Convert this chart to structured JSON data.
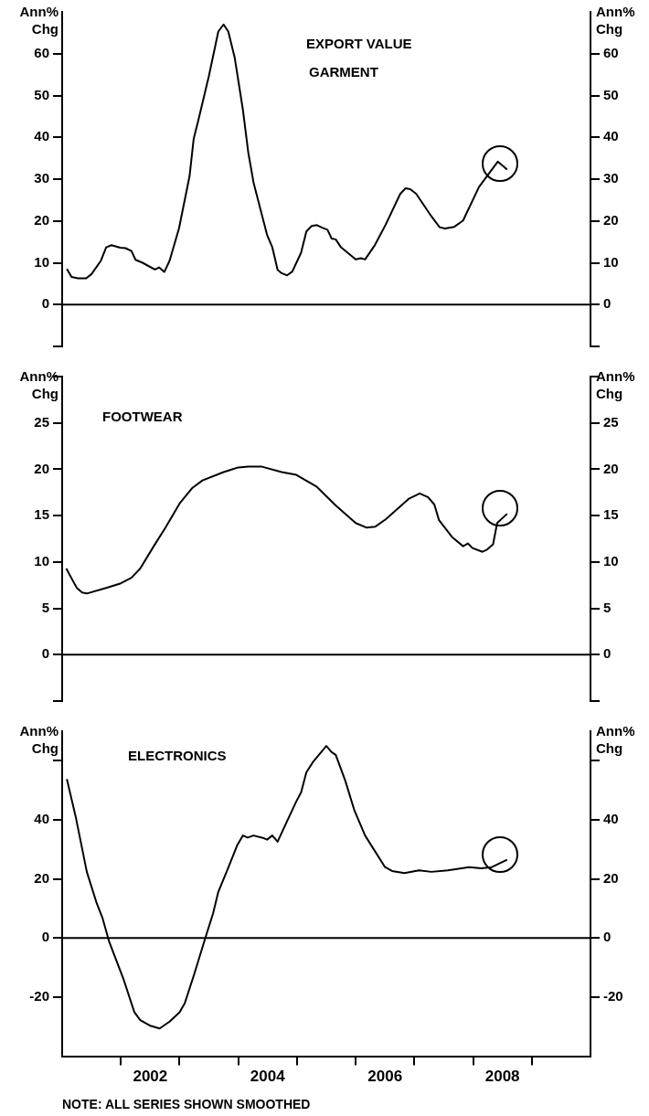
{
  "chart_data": [
    {
      "type": "line",
      "title": "EXPORT VALUE",
      "subtitle": "GARMENT",
      "ylabel": "Ann% Chg",
      "y2label": "Ann% Chg",
      "tick_labels": "y",
      "xlim": [
        2001,
        2010
      ],
      "ylim": [
        -10,
        70
      ],
      "yticks": [
        {
          "value": -10,
          "label": null
        },
        0,
        10,
        20,
        30,
        40,
        50,
        60
      ],
      "y2lim": [
        -10,
        70
      ],
      "y2ticks": [
        {
          "value": -10,
          "label": null
        },
        0,
        10,
        20,
        30,
        40,
        50,
        60
      ],
      "x": [
        2001.08,
        2001.16,
        2001.27,
        2001.41,
        2001.5,
        2001.66,
        2001.75,
        2001.84,
        2001.99,
        2002.08,
        2002.18,
        2002.25,
        2002.37,
        2002.58,
        2002.65,
        2002.74,
        2002.83,
        2002.99,
        2003.17,
        2003.24,
        2003.32,
        2003.5,
        2003.66,
        2003.75,
        2003.83,
        2003.94,
        2004.08,
        2004.17,
        2004.26,
        2004.49,
        2004.58,
        2004.67,
        2004.74,
        2004.83,
        2004.92,
        2005.07,
        2005.16,
        2005.25,
        2005.34,
        2005.43,
        2005.52,
        2005.59,
        2005.66,
        2005.75,
        2006.0,
        2006.09,
        2006.16,
        2006.33,
        2006.51,
        2006.76,
        2006.85,
        2006.93,
        2007.03,
        2007.29,
        2007.43,
        2007.52,
        2007.68,
        2007.83,
        2008.1,
        2008.42,
        2008.58
      ],
      "series": [
        {
          "color": "#000000",
          "values": [
            8.5,
            6.6,
            6.3,
            6.3,
            7.3,
            10.5,
            13.7,
            14.2,
            13.6,
            13.5,
            12.8,
            10.7,
            10.0,
            8.4,
            8.9,
            7.8,
            10.5,
            18.2,
            30.7,
            39.6,
            44.1,
            54.7,
            65.3,
            67.0,
            65.3,
            59.0,
            46.5,
            36.4,
            29.2,
            16.7,
            13.7,
            8.3,
            7.5,
            7.0,
            7.9,
            12.4,
            17.5,
            18.8,
            19.0,
            18.4,
            17.9,
            15.8,
            15.6,
            13.7,
            10.8,
            11.1,
            10.8,
            14.3,
            19.1,
            26.5,
            27.8,
            27.6,
            26.5,
            21.1,
            18.5,
            18.2,
            18.6,
            20.1,
            28.1,
            34.2,
            32.3
          ]
        }
      ],
      "ref_lines": [
        {
          "axis": "y",
          "value": 0
        }
      ]
    },
    {
      "type": "line",
      "title": "FOOTWEAR",
      "ylabel": "Ann% Chg",
      "y2label": "Ann% Chg",
      "tick_labels": "y",
      "xlim": [
        2001,
        2010
      ],
      "ylim": [
        -5,
        30
      ],
      "yticks": [
        {
          "value": -5,
          "label": null
        },
        0,
        5,
        10,
        15,
        20,
        25,
        {
          "value": 30,
          "label": null
        }
      ],
      "y2lim": [
        -5,
        30
      ],
      "y2ticks": [
        {
          "value": -5,
          "label": null
        },
        0,
        5,
        10,
        15,
        20,
        25,
        {
          "value": 30,
          "label": null
        }
      ],
      "x": [
        2001.07,
        2001.18,
        2001.25,
        2001.34,
        2001.42,
        2001.75,
        2002.0,
        2002.18,
        2002.33,
        2002.56,
        2002.76,
        2003.0,
        2003.22,
        2003.39,
        2003.75,
        2004.0,
        2004.17,
        2004.39,
        2004.74,
        2004.99,
        2005.34,
        2005.66,
        2006.0,
        2006.19,
        2006.33,
        2006.51,
        2006.9,
        2007.09,
        2007.23,
        2007.34,
        2007.42,
        2007.64,
        2007.83,
        2007.91,
        2007.99,
        2008.16,
        2008.23,
        2008.34,
        2008.41,
        2008.58
      ],
      "series": [
        {
          "color": "#000000",
          "values": [
            9.3,
            8.0,
            7.2,
            6.7,
            6.6,
            7.2,
            7.7,
            8.3,
            9.3,
            11.7,
            13.7,
            16.3,
            18.0,
            18.8,
            19.7,
            20.2,
            20.3,
            20.3,
            19.7,
            19.4,
            18.1,
            16.1,
            14.2,
            13.7,
            13.8,
            14.6,
            16.8,
            17.4,
            17.0,
            16.2,
            14.5,
            12.7,
            11.7,
            12.0,
            11.5,
            11.1,
            11.3,
            11.9,
            14.2,
            15.2
          ]
        }
      ],
      "ref_lines": [
        {
          "axis": "y",
          "value": 0
        }
      ]
    },
    {
      "type": "line",
      "title": "ELECTRONICS",
      "ylabel": "Ann% Chg",
      "y2label": "Ann% Chg",
      "annotations": [
        "NOTE: ALL SERIES SHOWN SMOOTHED"
      ],
      "xlim": [
        2001,
        2010
      ],
      "xticks": [
        {
          "value": 2002,
          "label": null
        },
        {
          "value": 2002.5,
          "label": "2002"
        },
        {
          "value": 2003,
          "label": null
        },
        {
          "value": 2004,
          "label": null
        },
        {
          "value": 2004.5,
          "label": "2004"
        },
        {
          "value": 2005,
          "label": null
        },
        {
          "value": 2006,
          "label": null
        },
        {
          "value": 2006.5,
          "label": "2006"
        },
        {
          "value": 2007,
          "label": null
        },
        {
          "value": 2008,
          "label": null
        },
        {
          "value": 2008.5,
          "label": "2008"
        },
        {
          "value": 2009,
          "label": null
        }
      ],
      "ylim": [
        -40,
        70
      ],
      "yticks": [
        -20,
        0,
        20,
        40,
        {
          "value": 60,
          "label": null
        }
      ],
      "y2lim": [
        -40,
        70
      ],
      "y2ticks": [
        -20,
        0,
        20,
        40,
        {
          "value": 60,
          "label": null
        }
      ],
      "x": [
        2001.08,
        2001.23,
        2001.42,
        2001.59,
        2001.69,
        2001.8,
        2002.05,
        2002.23,
        2002.33,
        2002.49,
        2002.66,
        2002.83,
        2003.0,
        2003.09,
        2003.25,
        2003.44,
        2003.57,
        2003.66,
        2003.82,
        2003.98,
        2004.08,
        2004.16,
        2004.26,
        2004.42,
        2004.49,
        2004.58,
        2004.67,
        2004.83,
        2004.99,
        2005.07,
        2005.16,
        2005.27,
        2005.5,
        2005.59,
        2005.66,
        2005.82,
        2005.98,
        2006.16,
        2006.5,
        2006.62,
        2006.83,
        2007.08,
        2007.29,
        2007.57,
        2007.93,
        2008.14,
        2008.32,
        2008.58
      ],
      "series": [
        {
          "color": "#000000",
          "values": [
            53.8,
            41.1,
            22.4,
            11.7,
            6.6,
            -1.2,
            -14.2,
            -25.1,
            -27.8,
            -29.6,
            -30.6,
            -28.3,
            -25.1,
            -22.0,
            -12.2,
            0.1,
            8.3,
            15.6,
            23.3,
            31.3,
            34.7,
            34.0,
            34.7,
            33.9,
            33.3,
            34.7,
            32.6,
            39.5,
            46.3,
            49.3,
            56.1,
            59.5,
            65.0,
            62.9,
            62.0,
            53.4,
            43.1,
            34.7,
            24.0,
            22.7,
            22.0,
            22.9,
            22.4,
            22.9,
            24.0,
            23.6,
            24.0,
            26.5
          ]
        }
      ],
      "ref_lines": [
        {
          "axis": "y",
          "value": 0
        }
      ]
    }
  ]
}
